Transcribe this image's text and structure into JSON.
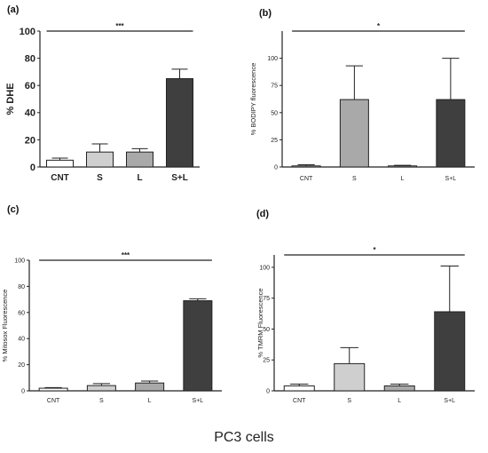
{
  "figure": {
    "caption": "PC3 cells"
  },
  "chart_data": [
    {
      "type": "bar",
      "panel_label": "(a)",
      "ylabel": "% DHE",
      "categories": [
        "CNT",
        "S",
        "L",
        "S+L"
      ],
      "values": [
        5,
        11,
        11,
        65
      ],
      "errors": [
        1.5,
        6,
        2.5,
        7
      ],
      "ylim": [
        0,
        100
      ],
      "yticks": [
        "0",
        "20",
        "40",
        "60",
        "80",
        "100"
      ],
      "significance": "***",
      "colors": [
        "#ffffff",
        "#cfcfcf",
        "#a9a9a9",
        "#3f3f3f"
      ]
    },
    {
      "type": "bar",
      "panel_label": "(b)",
      "ylabel": "% BODIPY fluorescence",
      "categories": [
        "CNT",
        "S",
        "L",
        "S+L"
      ],
      "values": [
        1,
        62,
        1,
        62
      ],
      "errors": [
        1,
        31,
        0.5,
        38
      ],
      "ylim": [
        0,
        125
      ],
      "yticks": [
        "0",
        "25",
        "50",
        "75",
        "100"
      ],
      "significance": "*",
      "colors": [
        "#ffffff",
        "#a9a9a9",
        "#ffffff",
        "#3f3f3f"
      ]
    },
    {
      "type": "bar",
      "panel_label": "(c)",
      "ylabel": "% Mitosox Fluorescence",
      "categories": [
        "CNT",
        "S",
        "L",
        "S+L"
      ],
      "values": [
        2,
        4,
        6,
        69
      ],
      "errors": [
        0.5,
        1.5,
        1.5,
        1.5
      ],
      "ylim": [
        0,
        100
      ],
      "yticks": [
        "0",
        "20",
        "40",
        "60",
        "80",
        "100"
      ],
      "significance": "***",
      "colors": [
        "#ffffff",
        "#cfcfcf",
        "#a9a9a9",
        "#3f3f3f"
      ]
    },
    {
      "type": "bar",
      "panel_label": "(d)",
      "ylabel": "% TMRM Fluorescence",
      "categories": [
        "CNT",
        "S",
        "L",
        "S+L"
      ],
      "values": [
        4,
        22,
        4,
        64
      ],
      "errors": [
        1.5,
        13,
        1.5,
        37
      ],
      "ylim": [
        0,
        110
      ],
      "yticks": [
        "0",
        "25",
        "50",
        "75",
        "100"
      ],
      "significance": "*",
      "colors": [
        "#ffffff",
        "#cfcfcf",
        "#a9a9a9",
        "#3f3f3f"
      ]
    }
  ]
}
